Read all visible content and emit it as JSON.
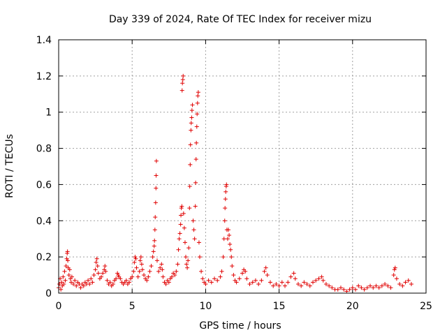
{
  "chart_data": {
    "type": "scatter",
    "title": "Day 339 of 2024, Rate Of TEC Index for receiver mizu",
    "xlabel": "GPS time / hours",
    "ylabel": "ROTI / TECUs",
    "xlim": [
      0,
      25
    ],
    "ylim": [
      0,
      1.4
    ],
    "xticks": [
      0,
      5,
      10,
      15,
      20,
      25
    ],
    "yticks": [
      0,
      0.2,
      0.4,
      0.6,
      0.8,
      1,
      1.2,
      1.4
    ],
    "xtick_labels": [
      "0",
      "5",
      "10",
      "15",
      "20",
      "25"
    ],
    "ytick_labels": [
      "0",
      "0.2",
      "0.4",
      "0.6",
      "0.8",
      "1",
      "1.2",
      "1.4"
    ],
    "grid": true,
    "legend": "none",
    "marker": "plus",
    "color": "#e00000",
    "series": [
      {
        "points": [
          [
            0.0,
            0.03
          ],
          [
            0.05,
            0.05
          ],
          [
            0.1,
            0.08
          ],
          [
            0.15,
            0.02
          ],
          [
            0.2,
            0.06
          ],
          [
            0.25,
            0.04
          ],
          [
            0.3,
            0.09
          ],
          [
            0.35,
            0.05
          ],
          [
            0.4,
            0.12
          ],
          [
            0.45,
            0.07
          ],
          [
            0.5,
            0.15
          ],
          [
            0.55,
            0.19
          ],
          [
            0.58,
            0.22
          ],
          [
            0.6,
            0.23
          ],
          [
            0.62,
            0.18
          ],
          [
            0.65,
            0.14
          ],
          [
            0.7,
            0.1
          ],
          [
            0.75,
            0.13
          ],
          [
            0.8,
            0.08
          ],
          [
            0.85,
            0.06
          ],
          [
            0.9,
            0.09
          ],
          [
            1.0,
            0.05
          ],
          [
            1.1,
            0.07
          ],
          [
            1.2,
            0.04
          ],
          [
            1.3,
            0.06
          ],
          [
            1.4,
            0.05
          ],
          [
            1.5,
            0.03
          ],
          [
            1.6,
            0.05
          ],
          [
            1.7,
            0.04
          ],
          [
            1.8,
            0.06
          ],
          [
            1.9,
            0.05
          ],
          [
            2.0,
            0.07
          ],
          [
            2.1,
            0.05
          ],
          [
            2.2,
            0.08
          ],
          [
            2.3,
            0.06
          ],
          [
            2.4,
            0.1
          ],
          [
            2.5,
            0.13
          ],
          [
            2.55,
            0.17
          ],
          [
            2.6,
            0.19
          ],
          [
            2.65,
            0.15
          ],
          [
            2.7,
            0.11
          ],
          [
            2.8,
            0.08
          ],
          [
            2.9,
            0.09
          ],
          [
            3.0,
            0.11
          ],
          [
            3.1,
            0.13
          ],
          [
            3.15,
            0.15
          ],
          [
            3.2,
            0.12
          ],
          [
            3.3,
            0.07
          ],
          [
            3.4,
            0.05
          ],
          [
            3.5,
            0.06
          ],
          [
            3.6,
            0.04
          ],
          [
            3.7,
            0.05
          ],
          [
            3.8,
            0.07
          ],
          [
            3.9,
            0.08
          ],
          [
            4.0,
            0.11
          ],
          [
            4.05,
            0.1
          ],
          [
            4.1,
            0.09
          ],
          [
            4.2,
            0.08
          ],
          [
            4.3,
            0.06
          ],
          [
            4.4,
            0.05
          ],
          [
            4.5,
            0.06
          ],
          [
            4.6,
            0.07
          ],
          [
            4.7,
            0.05
          ],
          [
            4.8,
            0.06
          ],
          [
            4.9,
            0.08
          ],
          [
            5.0,
            0.09
          ],
          [
            5.1,
            0.12
          ],
          [
            5.15,
            0.17
          ],
          [
            5.2,
            0.2
          ],
          [
            5.25,
            0.19
          ],
          [
            5.3,
            0.14
          ],
          [
            5.4,
            0.09
          ],
          [
            5.5,
            0.12
          ],
          [
            5.55,
            0.18
          ],
          [
            5.6,
            0.2
          ],
          [
            5.65,
            0.16
          ],
          [
            5.7,
            0.13
          ],
          [
            5.8,
            0.1
          ],
          [
            5.9,
            0.08
          ],
          [
            6.0,
            0.07
          ],
          [
            6.1,
            0.09
          ],
          [
            6.2,
            0.12
          ],
          [
            6.3,
            0.15
          ],
          [
            6.4,
            0.2
          ],
          [
            6.45,
            0.23
          ],
          [
            6.5,
            0.26
          ],
          [
            6.52,
            0.29
          ],
          [
            6.55,
            0.35
          ],
          [
            6.57,
            0.42
          ],
          [
            6.6,
            0.5
          ],
          [
            6.62,
            0.58
          ],
          [
            6.63,
            0.65
          ],
          [
            6.65,
            0.73
          ],
          [
            6.7,
            0.18
          ],
          [
            6.8,
            0.12
          ],
          [
            6.9,
            0.14
          ],
          [
            7.0,
            0.16
          ],
          [
            7.05,
            0.13
          ],
          [
            7.1,
            0.09
          ],
          [
            7.2,
            0.06
          ],
          [
            7.3,
            0.05
          ],
          [
            7.4,
            0.07
          ],
          [
            7.5,
            0.06
          ],
          [
            7.6,
            0.08
          ],
          [
            7.7,
            0.09
          ],
          [
            7.8,
            0.11
          ],
          [
            7.9,
            0.1
          ],
          [
            8.0,
            0.12
          ],
          [
            8.1,
            0.16
          ],
          [
            8.15,
            0.24
          ],
          [
            8.2,
            0.3
          ],
          [
            8.25,
            0.33
          ],
          [
            8.3,
            0.38
          ],
          [
            8.32,
            0.43
          ],
          [
            8.35,
            0.47
          ],
          [
            8.38,
            0.48
          ],
          [
            8.4,
            1.12
          ],
          [
            8.42,
            1.16
          ],
          [
            8.45,
            1.18
          ],
          [
            8.47,
            1.2
          ],
          [
            8.5,
            0.44
          ],
          [
            8.55,
            0.36
          ],
          [
            8.6,
            0.28
          ],
          [
            8.65,
            0.2
          ],
          [
            8.7,
            0.16
          ],
          [
            8.75,
            0.14
          ],
          [
            8.8,
            0.18
          ],
          [
            8.85,
            0.25
          ],
          [
            8.9,
            0.47
          ],
          [
            8.92,
            0.59
          ],
          [
            8.95,
            0.71
          ],
          [
            8.97,
            0.82
          ],
          [
            9.0,
            0.9
          ],
          [
            9.02,
            0.94
          ],
          [
            9.05,
            0.97
          ],
          [
            9.07,
            1.01
          ],
          [
            9.1,
            1.04
          ],
          [
            9.15,
            0.4
          ],
          [
            9.2,
            0.35
          ],
          [
            9.25,
            0.3
          ],
          [
            9.3,
            0.48
          ],
          [
            9.32,
            0.61
          ],
          [
            9.35,
            0.74
          ],
          [
            9.37,
            0.83
          ],
          [
            9.4,
            0.92
          ],
          [
            9.42,
            0.99
          ],
          [
            9.45,
            1.05
          ],
          [
            9.47,
            1.09
          ],
          [
            9.5,
            1.11
          ],
          [
            9.55,
            0.28
          ],
          [
            9.6,
            0.2
          ],
          [
            9.7,
            0.12
          ],
          [
            9.8,
            0.08
          ],
          [
            9.9,
            0.06
          ],
          [
            10.0,
            0.05
          ],
          [
            10.2,
            0.07
          ],
          [
            10.4,
            0.06
          ],
          [
            10.6,
            0.08
          ],
          [
            10.8,
            0.07
          ],
          [
            11.0,
            0.09
          ],
          [
            11.1,
            0.12
          ],
          [
            11.2,
            0.2
          ],
          [
            11.25,
            0.3
          ],
          [
            11.3,
            0.4
          ],
          [
            11.32,
            0.47
          ],
          [
            11.35,
            0.52
          ],
          [
            11.37,
            0.56
          ],
          [
            11.4,
            0.59
          ],
          [
            11.42,
            0.6
          ],
          [
            11.45,
            0.35
          ],
          [
            11.5,
            0.3
          ],
          [
            11.55,
            0.35
          ],
          [
            11.6,
            0.32
          ],
          [
            11.65,
            0.27
          ],
          [
            11.7,
            0.24
          ],
          [
            11.75,
            0.2
          ],
          [
            11.8,
            0.15
          ],
          [
            11.9,
            0.1
          ],
          [
            12.0,
            0.07
          ],
          [
            12.1,
            0.06
          ],
          [
            12.3,
            0.08
          ],
          [
            12.5,
            0.11
          ],
          [
            12.6,
            0.13
          ],
          [
            12.7,
            0.12
          ],
          [
            12.8,
            0.08
          ],
          [
            13.0,
            0.05
          ],
          [
            13.2,
            0.06
          ],
          [
            13.4,
            0.07
          ],
          [
            13.6,
            0.05
          ],
          [
            13.8,
            0.07
          ],
          [
            14.0,
            0.12
          ],
          [
            14.1,
            0.14
          ],
          [
            14.2,
            0.1
          ],
          [
            14.4,
            0.06
          ],
          [
            14.6,
            0.04
          ],
          [
            14.8,
            0.05
          ],
          [
            15.0,
            0.04
          ],
          [
            15.2,
            0.06
          ],
          [
            15.4,
            0.04
          ],
          [
            15.6,
            0.06
          ],
          [
            15.8,
            0.09
          ],
          [
            16.0,
            0.11
          ],
          [
            16.1,
            0.08
          ],
          [
            16.3,
            0.05
          ],
          [
            16.5,
            0.04
          ],
          [
            16.7,
            0.06
          ],
          [
            16.9,
            0.05
          ],
          [
            17.1,
            0.04
          ],
          [
            17.3,
            0.06
          ],
          [
            17.5,
            0.07
          ],
          [
            17.7,
            0.08
          ],
          [
            17.9,
            0.09
          ],
          [
            18.0,
            0.07
          ],
          [
            18.2,
            0.05
          ],
          [
            18.4,
            0.04
          ],
          [
            18.6,
            0.03
          ],
          [
            18.8,
            0.02
          ],
          [
            19.0,
            0.02
          ],
          [
            19.2,
            0.03
          ],
          [
            19.4,
            0.02
          ],
          [
            19.6,
            0.01
          ],
          [
            19.8,
            0.02
          ],
          [
            20.0,
            0.03
          ],
          [
            20.2,
            0.02
          ],
          [
            20.4,
            0.04
          ],
          [
            20.6,
            0.03
          ],
          [
            20.8,
            0.02
          ],
          [
            21.0,
            0.03
          ],
          [
            21.2,
            0.04
          ],
          [
            21.4,
            0.03
          ],
          [
            21.6,
            0.04
          ],
          [
            21.8,
            0.03
          ],
          [
            22.0,
            0.04
          ],
          [
            22.2,
            0.05
          ],
          [
            22.4,
            0.04
          ],
          [
            22.6,
            0.03
          ],
          [
            22.8,
            0.1
          ],
          [
            22.85,
            0.13
          ],
          [
            22.9,
            0.14
          ],
          [
            23.0,
            0.08
          ],
          [
            23.2,
            0.05
          ],
          [
            23.4,
            0.04
          ],
          [
            23.6,
            0.06
          ],
          [
            23.8,
            0.07
          ],
          [
            24.0,
            0.05
          ]
        ]
      }
    ]
  }
}
